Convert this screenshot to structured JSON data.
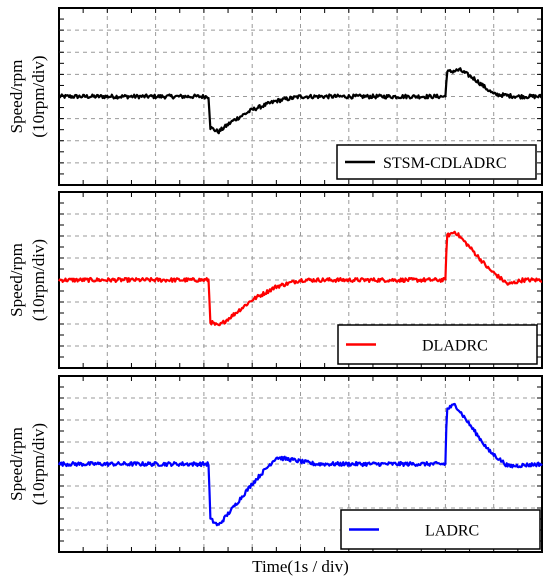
{
  "chart_data": [
    {
      "type": "line",
      "ylabel": [
        "Speed/rpm",
        "(10rpm/div)"
      ],
      "legend": {
        "position": "bottom-right"
      },
      "grid": true,
      "xlim": [
        0,
        10
      ],
      "ylim": [
        -4,
        4
      ],
      "series": [
        {
          "name": "STSM-CDLADRC",
          "color": "#000000",
          "points": [
            [
              0,
              0
            ],
            [
              3.1,
              0
            ],
            [
              3.13,
              -1.4
            ],
            [
              3.3,
              -1.6
            ],
            [
              3.6,
              -1.1
            ],
            [
              4.0,
              -0.6
            ],
            [
              4.5,
              -0.2
            ],
            [
              5,
              0
            ],
            [
              8.0,
              0
            ],
            [
              8.03,
              1.1
            ],
            [
              8.3,
              1.2
            ],
            [
              8.6,
              0.8
            ],
            [
              9.0,
              0.1
            ],
            [
              9.5,
              0
            ],
            [
              10,
              0
            ]
          ]
        },
        {
          "name": "DLADRC",
          "color": "#ff0000",
          "points": [
            [
              0,
              0
            ],
            [
              3.1,
              0
            ],
            [
              3.13,
              -1.9
            ],
            [
              3.3,
              -2.1
            ],
            [
              3.6,
              -1.6
            ],
            [
              4.0,
              -0.9
            ],
            [
              4.5,
              -0.3
            ],
            [
              5,
              0
            ],
            [
              8.0,
              0
            ],
            [
              8.03,
              2.0
            ],
            [
              8.2,
              2.2
            ],
            [
              8.5,
              1.5
            ],
            [
              8.9,
              0.5
            ],
            [
              9.3,
              -0.2
            ],
            [
              9.6,
              0
            ],
            [
              10,
              0
            ]
          ]
        },
        {
          "name": "LADRC",
          "color": "#0000ff",
          "points": [
            [
              0,
              0
            ],
            [
              3.1,
              0
            ],
            [
              3.13,
              -2.5
            ],
            [
              3.3,
              -2.8
            ],
            [
              3.6,
              -2.0
            ],
            [
              4.0,
              -0.9
            ],
            [
              4.5,
              0.3
            ],
            [
              4.8,
              0.2
            ],
            [
              5.3,
              0
            ],
            [
              8.0,
              0
            ],
            [
              8.03,
              2.5
            ],
            [
              8.2,
              2.7
            ],
            [
              8.5,
              1.8
            ],
            [
              8.9,
              0.6
            ],
            [
              9.3,
              -0.1
            ],
            [
              10,
              0
            ]
          ]
        }
      ]
    }
  ],
  "xlabel": "Time(1s / div)"
}
